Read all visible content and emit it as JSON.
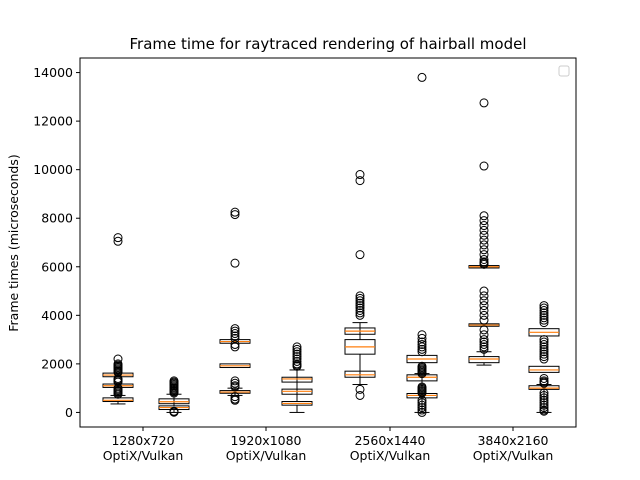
{
  "chart_data": {
    "type": "boxplot",
    "title": "Frame time for raytraced rendering of hairball model",
    "xlabel": "",
    "ylabel": "Frame times (microseconds)",
    "ylim": [
      -600,
      14600
    ],
    "yticks": [
      0,
      2000,
      4000,
      6000,
      8000,
      10000,
      12000,
      14000
    ],
    "categories": [
      "1280x720\nOptiX/Vulkan",
      "1920x1080\nOptiX/Vulkan",
      "2560x1440\nOptiX/Vulkan",
      "3840x2160\nOptiX/Vulkan"
    ],
    "legend": {
      "placement": "top-right",
      "entries": []
    },
    "colors": {
      "box": "#000000",
      "median": "#ff7f0e",
      "flier": "#000000"
    },
    "boxes": [
      {
        "group": "1280x720",
        "api": "OptiX",
        "whisker_low": 350,
        "q1": 450,
        "median": 500,
        "q3": 600,
        "whisker_high": 700,
        "overlays": [
          {
            "q1": 1030,
            "median": 1100,
            "q3": 1170
          },
          {
            "q1": 1470,
            "median": 1540,
            "q3": 1620
          }
        ],
        "fliers": [
          7200,
          7050,
          2200,
          2000,
          1950,
          1900,
          1850,
          1800,
          1750,
          1700,
          1650,
          1400,
          1350,
          1300,
          1250,
          1000,
          950,
          900,
          850,
          800,
          750
        ]
      },
      {
        "group": "1280x720",
        "api": "Vulkan",
        "whisker_low": 0,
        "q1": 120,
        "median": 200,
        "q3": 270,
        "whisker_high": 750,
        "overlays": [
          {
            "q1": 360,
            "median": 440,
            "q3": 560
          }
        ],
        "fliers": [
          1300,
          1250,
          1200,
          1150,
          1100,
          1050,
          1000,
          950,
          900,
          850,
          800,
          50,
          30,
          10
        ]
      },
      {
        "group": "1920x1080",
        "api": "OptiX",
        "whisker_low": 700,
        "q1": 790,
        "median": 840,
        "q3": 900,
        "whisker_high": 1000,
        "overlays": [
          {
            "q1": 1850,
            "median": 1920,
            "q3": 2000
          },
          {
            "q1": 2850,
            "median": 2920,
            "q3": 3000
          }
        ],
        "fliers": [
          8250,
          8150,
          6150,
          3450,
          3350,
          3250,
          3150,
          3050,
          2800,
          2700,
          1300,
          1200,
          1100,
          1050,
          650,
          550,
          500
        ]
      },
      {
        "group": "1920x1080",
        "api": "Vulkan",
        "whisker_low": 0,
        "q1": 300,
        "median": 370,
        "q3": 450,
        "whisker_high": 1750,
        "overlays": [
          {
            "q1": 750,
            "median": 870,
            "q3": 960
          },
          {
            "q1": 1250,
            "median": 1380,
            "q3": 1450
          }
        ],
        "fliers": [
          2700,
          2600,
          2500,
          2400,
          2300,
          2200,
          2100,
          2000,
          1950,
          1900
        ]
      },
      {
        "group": "2560x1440",
        "api": "OptiX",
        "whisker_low": 1150,
        "q1": 2400,
        "median": 2700,
        "q3": 3000,
        "whisker_high": 3700,
        "overlays": [
          {
            "q1": 1450,
            "median": 1550,
            "q3": 1700
          },
          {
            "q1": 3220,
            "median": 3350,
            "q3": 3480
          }
        ],
        "fliers": [
          9800,
          9550,
          6500,
          4800,
          4700,
          4600,
          4500,
          4400,
          4300,
          4200,
          4100,
          4000,
          950,
          700
        ]
      },
      {
        "group": "2560x1440",
        "api": "Vulkan",
        "whisker_low": 0,
        "q1": 600,
        "median": 700,
        "q3": 780,
        "whisker_high": 1600,
        "overlays": [
          {
            "q1": 1300,
            "median": 1450,
            "q3": 1550
          },
          {
            "q1": 2050,
            "median": 2200,
            "q3": 2350
          }
        ],
        "fliers": [
          13800,
          3200,
          3050,
          2900,
          2800,
          2700,
          2600,
          2500,
          1900,
          1850,
          1800,
          1750,
          1700,
          1650,
          1600,
          1050,
          1000,
          950,
          900,
          850,
          800,
          500,
          400,
          300,
          200,
          100,
          0
        ]
      },
      {
        "group": "3840x2160",
        "api": "OptiX",
        "whisker_low": 1950,
        "q1": 2050,
        "median": 2200,
        "q3": 2300,
        "whisker_high": 2500,
        "overlays": [
          {
            "q1": 3550,
            "median": 3600,
            "q3": 3650
          },
          {
            "q1": 5950,
            "median": 6000,
            "q3": 6050
          }
        ],
        "fliers": [
          12750,
          10150,
          8100,
          7900,
          7700,
          7500,
          7300,
          7100,
          6900,
          6700,
          6500,
          6300,
          6200,
          6150,
          6100,
          5000,
          4800,
          4600,
          4400,
          4200,
          4000,
          3800,
          3400,
          3200,
          3000,
          2900,
          2800,
          2700,
          2600
        ]
      },
      {
        "group": "3840x2160",
        "api": "Vulkan",
        "whisker_low": 0,
        "q1": 950,
        "median": 1000,
        "q3": 1100,
        "whisker_high": 1150,
        "overlays": [
          {
            "q1": 1650,
            "median": 1750,
            "q3": 1900
          },
          {
            "q1": 3150,
            "median": 3300,
            "q3": 3450
          }
        ],
        "fliers": [
          4400,
          4300,
          4200,
          4100,
          4000,
          3900,
          3800,
          3700,
          3000,
          2900,
          2800,
          2700,
          2600,
          2500,
          2400,
          2300,
          2200,
          1400,
          1300,
          1250,
          1200,
          800,
          700,
          600,
          500,
          400,
          300,
          200,
          100,
          50
        ]
      }
    ]
  }
}
